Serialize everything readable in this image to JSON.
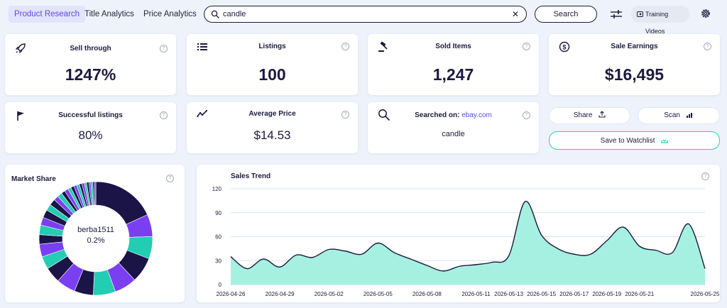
{
  "nav": {
    "tabs": [
      {
        "label": "Product Research",
        "active": true
      },
      {
        "label": "Title Analytics",
        "active": false
      },
      {
        "label": "Price Analytics",
        "active": false
      }
    ]
  },
  "search": {
    "value": "candle",
    "button_label": "Search"
  },
  "toolbar": {
    "training_label": "Training Videos"
  },
  "stats": {
    "sell_through": {
      "label": "Sell through",
      "value": "1247%"
    },
    "listings": {
      "label": "Listings",
      "value": "100"
    },
    "sold_items": {
      "label": "Sold Items",
      "value": "1,247"
    },
    "sale_earnings": {
      "label": "Sale Earnings",
      "value": "$16,495"
    },
    "successful_listings": {
      "label": "Successful listings",
      "value": "80%"
    },
    "average_price": {
      "label": "Average Price",
      "value": "$14.53"
    },
    "searched_on": {
      "label": "Searched on:",
      "site": "ebay.com",
      "value": "candle"
    }
  },
  "actions": {
    "share_label": "Share",
    "scan_label": "Scan",
    "watchlist_label": "Save to Watchlist"
  },
  "market_share": {
    "title": "Market Share",
    "center_name": "berba1511",
    "center_value": "0.2%",
    "colors": {
      "navy": "#1b1446",
      "purple": "#7b3ff2",
      "teal": "#22cdb3"
    },
    "segments": [
      {
        "value": 20,
        "color": "navy"
      },
      {
        "value": 7,
        "color": "purple"
      },
      {
        "value": 7,
        "color": "teal"
      },
      {
        "value": 8,
        "color": "navy"
      },
      {
        "value": 7,
        "color": "purple"
      },
      {
        "value": 7,
        "color": "teal"
      },
      {
        "value": 6,
        "color": "navy"
      },
      {
        "value": 6,
        "color": "purple"
      },
      {
        "value": 5,
        "color": "navy"
      },
      {
        "value": 4,
        "color": "teal"
      },
      {
        "value": 4,
        "color": "purple"
      },
      {
        "value": 3,
        "color": "navy"
      },
      {
        "value": 3,
        "color": "teal"
      },
      {
        "value": 2.5,
        "color": "purple"
      },
      {
        "value": 2.5,
        "color": "navy"
      },
      {
        "value": 2,
        "color": "teal"
      },
      {
        "value": 2,
        "color": "navy"
      },
      {
        "value": 1.5,
        "color": "purple"
      },
      {
        "value": 1.5,
        "color": "teal"
      },
      {
        "value": 1.2,
        "color": "navy"
      },
      {
        "value": 1.2,
        "color": "purple"
      },
      {
        "value": 1,
        "color": "teal"
      },
      {
        "value": 1,
        "color": "navy"
      },
      {
        "value": 0.9,
        "color": "purple"
      },
      {
        "value": 0.9,
        "color": "teal"
      },
      {
        "value": 0.8,
        "color": "navy"
      },
      {
        "value": 0.8,
        "color": "purple"
      },
      {
        "value": 0.7,
        "color": "teal"
      },
      {
        "value": 0.7,
        "color": "navy"
      },
      {
        "value": 0.6,
        "color": "purple"
      },
      {
        "value": 0.6,
        "color": "teal"
      },
      {
        "value": 0.5,
        "color": "navy"
      },
      {
        "value": 0.5,
        "color": "purple"
      }
    ]
  },
  "chart_data": {
    "type": "area",
    "title": "Sales Trend",
    "ylim": [
      0,
      120
    ],
    "yticks": [
      0,
      30,
      60,
      90,
      120
    ],
    "xticks": [
      "2026-04-26",
      "2026-04-29",
      "2026-05-02",
      "2026-05-05",
      "2026-05-08",
      "2026-05-11",
      "2026-05-13",
      "2026-05-15",
      "2026-05-17",
      "2026-05-19",
      "2026-05-21",
      "2026-05-25"
    ],
    "grid": true,
    "fill_color": "#a6f0e2",
    "line_color": "#1b1a3d",
    "series": [
      {
        "x": [
          "2026-04-26",
          "2026-04-27",
          "2026-04-28",
          "2026-04-29",
          "2026-04-30",
          "2026-05-01",
          "2026-05-02",
          "2026-05-03",
          "2026-05-04",
          "2026-05-05",
          "2026-05-06",
          "2026-05-07",
          "2026-05-08",
          "2026-05-09",
          "2026-05-10",
          "2026-05-11",
          "2026-05-12",
          "2026-05-13",
          "2026-05-14",
          "2026-05-15",
          "2026-05-16",
          "2026-05-17",
          "2026-05-18",
          "2026-05-19",
          "2026-05-20",
          "2026-05-21",
          "2026-05-22",
          "2026-05-23",
          "2026-05-24",
          "2026-05-25"
        ],
        "values": [
          35,
          20,
          32,
          22,
          37,
          34,
          44,
          42,
          38,
          52,
          40,
          32,
          24,
          17,
          23,
          25,
          28,
          36,
          104,
          62,
          45,
          38,
          38,
          55,
          72,
          48,
          43,
          40,
          76,
          20
        ]
      }
    ]
  }
}
